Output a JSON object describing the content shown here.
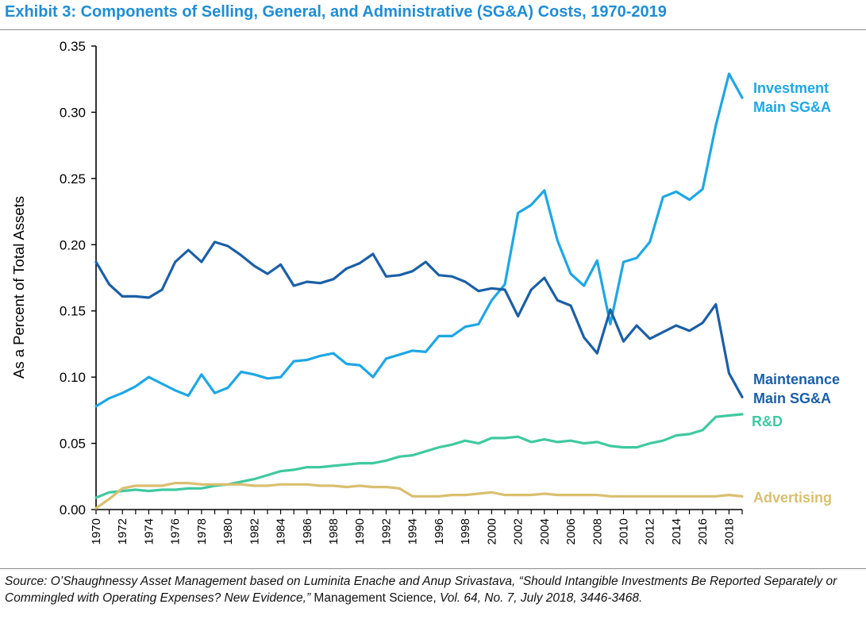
{
  "title": "Exhibit 3: Components of Selling, General, and Administrative (SG&A) Costs, 1970-2019",
  "source": {
    "part1": "Source: O’Shaughnessy Asset Management based on Luminita Enache and Anup Srivastava, “Should Intangible Investments Be Reported Separately or Commingled with Operating Expenses? New Evidence,” ",
    "journal": "Management Science,",
    "part2": " Vol. 64, No. 7, July 2018, 3446-3468."
  },
  "chart_data": {
    "type": "line",
    "title": "",
    "xlabel": "",
    "ylabel": "As a Percent of Total Assets",
    "xlim": [
      1970,
      2019
    ],
    "ylim": [
      0,
      0.35
    ],
    "yticks": [
      "0.00",
      "0.05",
      "0.10",
      "0.15",
      "0.20",
      "0.25",
      "0.30",
      "0.35"
    ],
    "xticks": [
      "1970",
      "1972",
      "1974",
      "1976",
      "1978",
      "1980",
      "1982",
      "1984",
      "1986",
      "1988",
      "1990",
      "1992",
      "1994",
      "1996",
      "1998",
      "2000",
      "2002",
      "2004",
      "2006",
      "2008",
      "2010",
      "2012",
      "2014",
      "2016",
      "2018"
    ],
    "grid": false,
    "legend": "inline labels at right end of each series",
    "x": [
      1970,
      1971,
      1972,
      1973,
      1974,
      1975,
      1976,
      1977,
      1978,
      1979,
      1980,
      1981,
      1982,
      1983,
      1984,
      1985,
      1986,
      1987,
      1988,
      1989,
      1990,
      1991,
      1992,
      1993,
      1994,
      1995,
      1996,
      1997,
      1998,
      1999,
      2000,
      2001,
      2002,
      2003,
      2004,
      2005,
      2006,
      2007,
      2008,
      2009,
      2010,
      2011,
      2012,
      2013,
      2014,
      2015,
      2016,
      2017,
      2018,
      2019
    ],
    "series": [
      {
        "name": "Investment Main SG&A",
        "label_lines": [
          "Investment",
          "Main SG&A"
        ],
        "color": "#1ea7e4",
        "values": [
          0.078,
          0.084,
          0.088,
          0.093,
          0.1,
          0.095,
          0.09,
          0.086,
          0.102,
          0.088,
          0.092,
          0.104,
          0.102,
          0.099,
          0.1,
          0.112,
          0.113,
          0.116,
          0.118,
          0.11,
          0.109,
          0.1,
          0.114,
          0.117,
          0.12,
          0.119,
          0.131,
          0.131,
          0.138,
          0.14,
          0.158,
          0.17,
          0.224,
          0.23,
          0.241,
          0.203,
          0.178,
          0.169,
          0.188,
          0.14,
          0.187,
          0.19,
          0.202,
          0.236,
          0.24,
          0.234,
          0.242,
          0.29,
          0.329,
          0.311
        ]
      },
      {
        "name": "Maintenance Main SG&A",
        "label_lines": [
          "Maintenance",
          "Main SG&A"
        ],
        "color": "#1b5fa6",
        "values": [
          0.187,
          0.17,
          0.161,
          0.161,
          0.16,
          0.166,
          0.187,
          0.196,
          0.187,
          0.202,
          0.199,
          0.192,
          0.184,
          0.178,
          0.185,
          0.169,
          0.172,
          0.171,
          0.174,
          0.182,
          0.186,
          0.193,
          0.176,
          0.177,
          0.18,
          0.187,
          0.177,
          0.176,
          0.172,
          0.165,
          0.167,
          0.166,
          0.146,
          0.166,
          0.175,
          0.158,
          0.154,
          0.13,
          0.118,
          0.151,
          0.127,
          0.139,
          0.129,
          0.134,
          0.139,
          0.135,
          0.141,
          0.155,
          0.103,
          0.085
        ]
      },
      {
        "name": "R&D",
        "label_lines": [
          "R&D"
        ],
        "color": "#3fc9a0",
        "values": [
          0.009,
          0.013,
          0.014,
          0.015,
          0.014,
          0.015,
          0.015,
          0.016,
          0.016,
          0.018,
          0.019,
          0.021,
          0.023,
          0.026,
          0.029,
          0.03,
          0.032,
          0.032,
          0.033,
          0.034,
          0.035,
          0.035,
          0.037,
          0.04,
          0.041,
          0.044,
          0.047,
          0.049,
          0.052,
          0.05,
          0.054,
          0.054,
          0.055,
          0.051,
          0.053,
          0.051,
          0.052,
          0.05,
          0.051,
          0.048,
          0.047,
          0.047,
          0.05,
          0.052,
          0.056,
          0.057,
          0.06,
          0.07,
          0.071,
          0.072
        ]
      },
      {
        "name": "Advertising",
        "label_lines": [
          "Advertising"
        ],
        "color": "#d9bf6f",
        "values": [
          0.001,
          0.008,
          0.016,
          0.018,
          0.018,
          0.018,
          0.02,
          0.02,
          0.019,
          0.019,
          0.019,
          0.019,
          0.018,
          0.018,
          0.019,
          0.019,
          0.019,
          0.018,
          0.018,
          0.017,
          0.018,
          0.017,
          0.017,
          0.016,
          0.01,
          0.01,
          0.01,
          0.011,
          0.011,
          0.012,
          0.013,
          0.011,
          0.011,
          0.011,
          0.012,
          0.011,
          0.011,
          0.011,
          0.011,
          0.01,
          0.01,
          0.01,
          0.01,
          0.01,
          0.01,
          0.01,
          0.01,
          0.01,
          0.011,
          0.01
        ]
      }
    ]
  }
}
